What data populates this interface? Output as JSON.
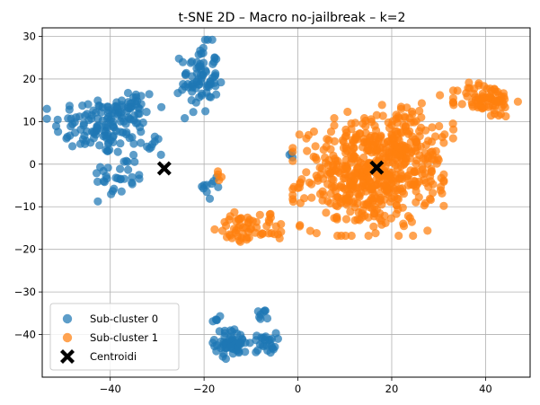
{
  "chart_data": {
    "type": "scatter",
    "title": "t-SNE 2D – Macro no-jailbreak – k=2",
    "xlabel": "",
    "ylabel": "",
    "xlim": [
      -54.5,
      49.5
    ],
    "ylim": [
      -50,
      32
    ],
    "xticks": [
      -40,
      -20,
      0,
      20,
      40
    ],
    "yticks": [
      -40,
      -30,
      -20,
      -10,
      0,
      10,
      20,
      30
    ],
    "xtick_labels": [
      "−40",
      "−20",
      "0",
      "20",
      "40"
    ],
    "ytick_labels": [
      "−40",
      "−30",
      "−20",
      "−10",
      "0",
      "10",
      "20",
      "30"
    ],
    "grid": true,
    "legend_position": "lower-left",
    "series": [
      {
        "name": "Sub-cluster 0",
        "color": "#1f77b4",
        "marker": "circle",
        "clusters": [
          {
            "cx": -42,
            "cy": 9,
            "sx": 5,
            "sy": 3.5,
            "n": 110
          },
          {
            "cx": -36,
            "cy": 13,
            "sx": 3,
            "sy": 2.5,
            "n": 40
          },
          {
            "cx": -38,
            "cy": -3,
            "sx": 3,
            "sy": 2.5,
            "n": 30
          },
          {
            "cx": -32,
            "cy": 5,
            "sx": 2,
            "sy": 2,
            "n": 12
          },
          {
            "cx": -21,
            "cy": 20,
            "sx": 2,
            "sy": 4,
            "n": 80
          },
          {
            "cx": -18,
            "cy": -5,
            "sx": 1.2,
            "sy": 2,
            "n": 10
          },
          {
            "cx": -14,
            "cy": -42,
            "sx": 1.8,
            "sy": 1.6,
            "n": 60
          },
          {
            "cx": -7,
            "cy": -42,
            "sx": 1.2,
            "sy": 1.2,
            "n": 25
          },
          {
            "cx": -8,
            "cy": -35.5,
            "sx": 0.8,
            "sy": 0.8,
            "n": 8
          },
          {
            "cx": -17,
            "cy": -36.5,
            "sx": 0.6,
            "sy": 0.5,
            "n": 5
          },
          {
            "cx": -1.5,
            "cy": 2.3,
            "sx": 0.4,
            "sy": 0.3,
            "n": 3
          }
        ]
      },
      {
        "name": "Sub-cluster 1",
        "color": "#ff7f0e",
        "marker": "circle",
        "clusters": [
          {
            "cx": 15,
            "cy": -3,
            "sx": 7,
            "sy": 6,
            "n": 480
          },
          {
            "cx": 22,
            "cy": 7,
            "sx": 5,
            "sy": 4,
            "n": 100
          },
          {
            "cx": 40,
            "cy": 15,
            "sx": 3,
            "sy": 2,
            "n": 80
          },
          {
            "cx": -12,
            "cy": -15,
            "sx": 2.5,
            "sy": 1.8,
            "n": 40
          },
          {
            "cx": -6,
            "cy": -15,
            "sx": 1.8,
            "sy": 2,
            "n": 20
          },
          {
            "cx": -16.5,
            "cy": -2.5,
            "sx": 0.5,
            "sy": 0.6,
            "n": 4
          },
          {
            "cx": 28,
            "cy": -2,
            "sx": 2,
            "sy": 3,
            "n": 20
          }
        ]
      }
    ],
    "centroids": {
      "name": "Centroidi",
      "marker": "X",
      "color": "#000000",
      "points": [
        [
          -28.5,
          -1
        ],
        [
          16.8,
          -0.8
        ]
      ]
    }
  }
}
